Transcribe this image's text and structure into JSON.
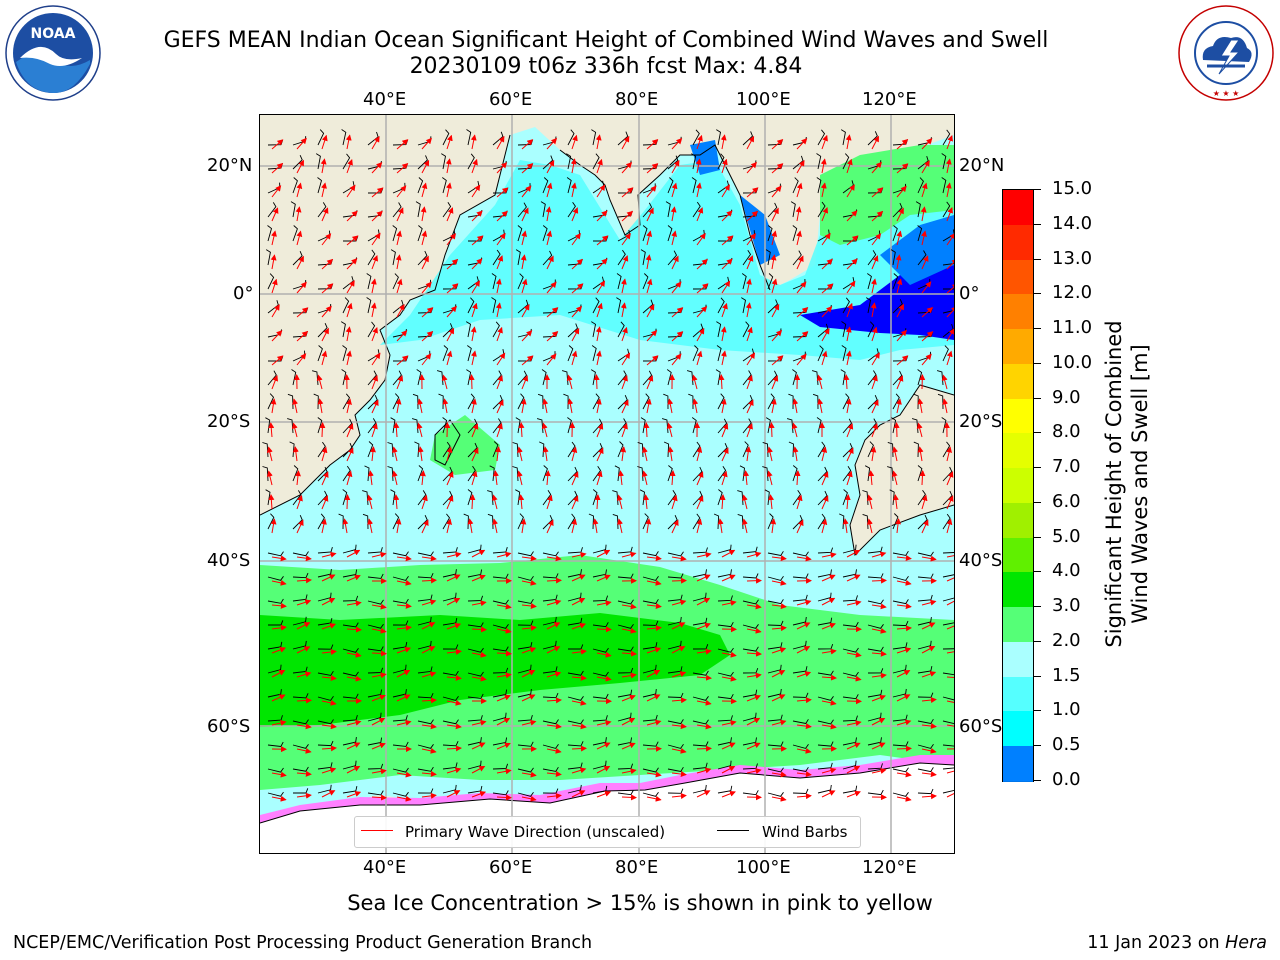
{
  "title": {
    "line1": "GEFS MEAN Indian Ocean Significant Height of Combined Wind Waves and Swell",
    "line2": "20230109 t06z 336h fcst   Max: 4.84"
  },
  "logos": {
    "left": "NOAA",
    "right": "NATIONAL WEATHER SERVICE"
  },
  "map": {
    "lon_labels": [
      "40°E",
      "60°E",
      "80°E",
      "100°E",
      "120°E"
    ],
    "lat_labels": [
      "20°N",
      "0°",
      "20°S",
      "40°S",
      "60°S"
    ],
    "legend": {
      "wave_label": "Primary Wave Direction (unscaled)",
      "barb_label": "Wind Barbs",
      "wave_color": "#ff0000",
      "barb_color": "#000000"
    },
    "colors": {
      "land": "#efecda",
      "ice": "#ff80ff",
      "ocean_low": "#aaffff"
    }
  },
  "colorbar": {
    "title_line1": "Significant Height of Combined",
    "title_line2": "Wind Waves and Swell [m]",
    "labels": [
      "15.0",
      "14.0",
      "13.0",
      "12.0",
      "11.0",
      "10.0",
      "9.0",
      "8.0",
      "7.0",
      "6.0",
      "5.0",
      "4.0",
      "3.0",
      "2.0",
      "1.5",
      "1.0",
      "0.5",
      "0.0"
    ],
    "colors": [
      "#ff0000",
      "#ff2a00",
      "#ff5500",
      "#ff8000",
      "#ffaa00",
      "#ffd400",
      "#ffff00",
      "#e5ff00",
      "#ccff00",
      "#a0f000",
      "#60f000",
      "#00e600",
      "#55ff77",
      "#aaffff",
      "#55ffff",
      "#00ffff",
      "#0080ff",
      "#0000ff"
    ]
  },
  "footer": {
    "note": "Sea Ice Concentration > 15% is shown in pink to yellow",
    "credit_left": "NCEP/EMC/Verification Post Processing Product Generation Branch",
    "credit_right_date": "11 Jan 2023 on ",
    "credit_right_host": "Hera"
  }
}
